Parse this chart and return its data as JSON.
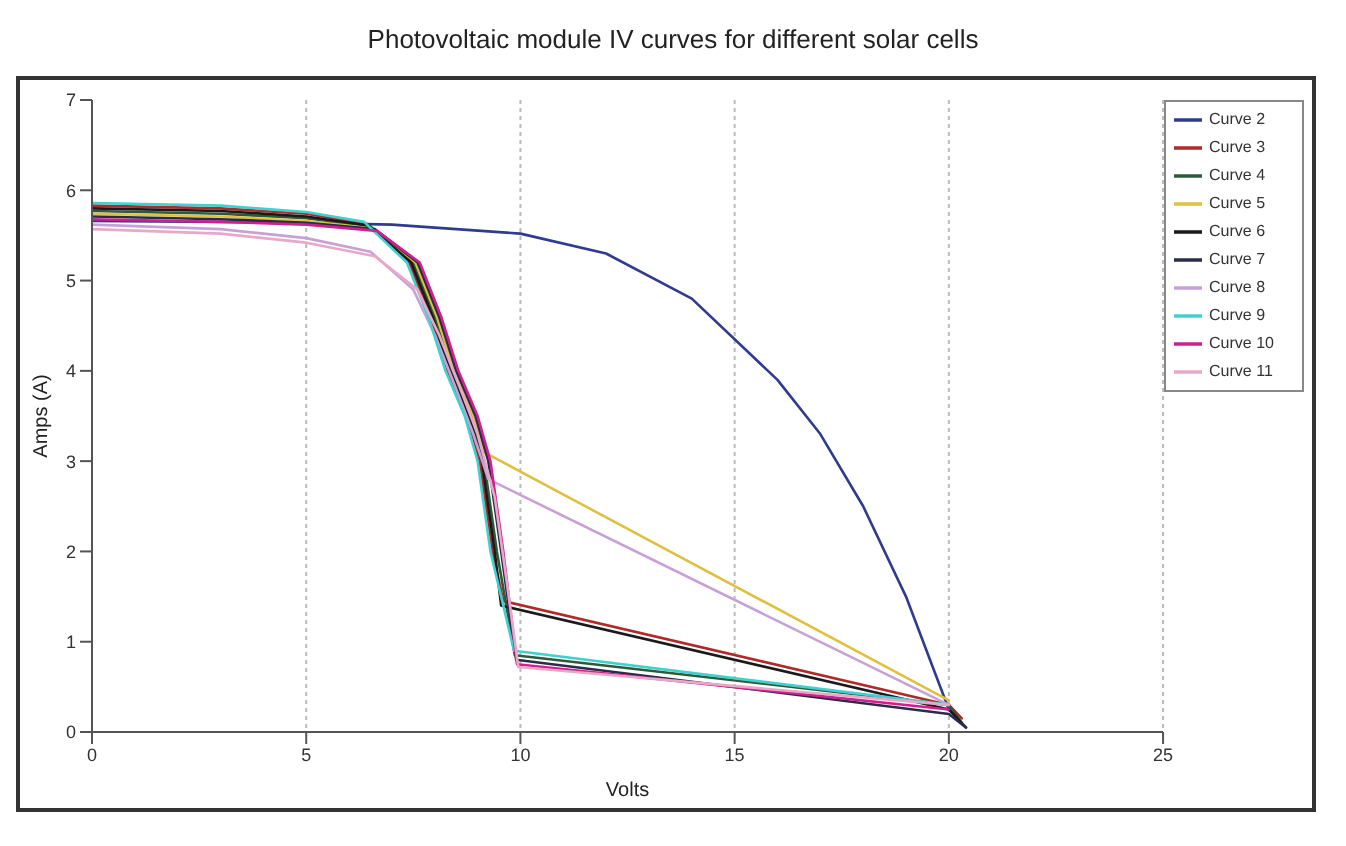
{
  "chart_data": {
    "type": "line",
    "title": "Photovoltaic module IV curves for different solar cells",
    "xlabel": "Volts",
    "ylabel": "Amps (A)",
    "xlim": [
      0,
      25
    ],
    "xticks": [
      0,
      5,
      10,
      15,
      20,
      25
    ],
    "ylim": [
      0,
      7
    ],
    "yticks": [
      0,
      1,
      2,
      3,
      4,
      5,
      6,
      7
    ],
    "grid": "x",
    "legend": "right",
    "marker": "none",
    "line_style": "solid",
    "series": [
      {
        "name": "Curve 2",
        "color": "#2e3b8f",
        "x": [
          0,
          3,
          5,
          7,
          10,
          12,
          14,
          16,
          17,
          18,
          19,
          20,
          20.4
        ],
        "values": [
          5.66,
          5.65,
          5.64,
          5.62,
          5.52,
          5.3,
          4.8,
          3.9,
          3.3,
          2.5,
          1.5,
          0.25,
          0.05
        ]
      },
      {
        "name": "Curve 3",
        "color": "#b02a2a",
        "x": [
          0,
          3,
          5,
          6.4,
          7.4,
          7.9,
          8.3,
          8.75,
          9.05,
          9.35,
          9.6,
          20,
          20.3
        ],
        "values": [
          5.83,
          5.8,
          5.74,
          5.63,
          5.2,
          4.6,
          4,
          3.5,
          3,
          2,
          1.45,
          0.3,
          0.15
        ]
      },
      {
        "name": "Curve 4",
        "color": "#2f5a3a",
        "x": [
          0,
          3,
          5,
          6.5,
          7.5,
          8,
          8.4,
          8.85,
          9.15,
          9.45,
          9.87,
          20,
          20.3
        ],
        "values": [
          5.77,
          5.74,
          5.69,
          5.6,
          5.2,
          4.6,
          4,
          3.5,
          3,
          2,
          0.85,
          0.3,
          0.1
        ]
      },
      {
        "name": "Curve 5",
        "color": "#e0c040",
        "x": [
          0,
          3,
          5,
          6.55,
          7.55,
          8.05,
          8.45,
          8.9,
          9.15,
          20
        ],
        "values": [
          5.74,
          5.71,
          5.66,
          5.58,
          5.2,
          4.6,
          4,
          3.5,
          3.1,
          0.35
        ]
      },
      {
        "name": "Curve 6",
        "color": "#1a1a1a",
        "x": [
          0,
          3,
          5,
          6.45,
          7.45,
          7.95,
          8.35,
          8.8,
          9.1,
          9.4,
          9.55,
          20,
          20.3
        ],
        "values": [
          5.8,
          5.77,
          5.71,
          5.61,
          5.2,
          4.6,
          4,
          3.5,
          3,
          2,
          1.4,
          0.25,
          0.1
        ]
      },
      {
        "name": "Curve 7",
        "color": "#2a2a4a",
        "x": [
          0,
          3,
          5,
          6.6,
          7.6,
          8.1,
          8.5,
          8.95,
          9.25,
          9.55,
          9.9,
          20,
          20.4
        ],
        "values": [
          5.71,
          5.68,
          5.64,
          5.57,
          5.2,
          4.6,
          4,
          3.5,
          3,
          2,
          0.8,
          0.2,
          0.05
        ]
      },
      {
        "name": "Curve 8",
        "color": "#c8a0d8",
        "x": [
          0,
          3,
          5,
          6.5,
          7.5,
          8,
          8.5,
          8.9,
          9.25,
          20
        ],
        "values": [
          5.62,
          5.57,
          5.47,
          5.32,
          4.9,
          4.4,
          3.8,
          3.3,
          2.8,
          0.3
        ]
      },
      {
        "name": "Curve 9",
        "color": "#40d0d0",
        "x": [
          0,
          3,
          5,
          6.35,
          7.35,
          7.85,
          8.25,
          8.7,
          9,
          9.3,
          9.85,
          20
        ],
        "values": [
          5.86,
          5.83,
          5.76,
          5.65,
          5.2,
          4.6,
          4,
          3.5,
          3,
          2,
          0.9,
          0.3
        ]
      },
      {
        "name": "Curve 10",
        "color": "#d02090",
        "x": [
          0,
          3,
          5,
          6.65,
          7.65,
          8.15,
          8.55,
          9,
          9.3,
          9.6,
          9.92,
          20
        ],
        "values": [
          5.68,
          5.65,
          5.62,
          5.55,
          5.2,
          4.6,
          4,
          3.5,
          3,
          2,
          0.75,
          0.25
        ]
      },
      {
        "name": "Curve 11",
        "color": "#e8a8c8",
        "x": [
          0,
          3,
          5,
          6.6,
          7.6,
          8.1,
          8.6,
          9,
          9.4,
          9.7,
          9.95,
          20
        ],
        "values": [
          5.57,
          5.52,
          5.42,
          5.27,
          4.9,
          4.4,
          3.8,
          3.3,
          2.6,
          1.6,
          0.72,
          0.3
        ]
      }
    ]
  }
}
